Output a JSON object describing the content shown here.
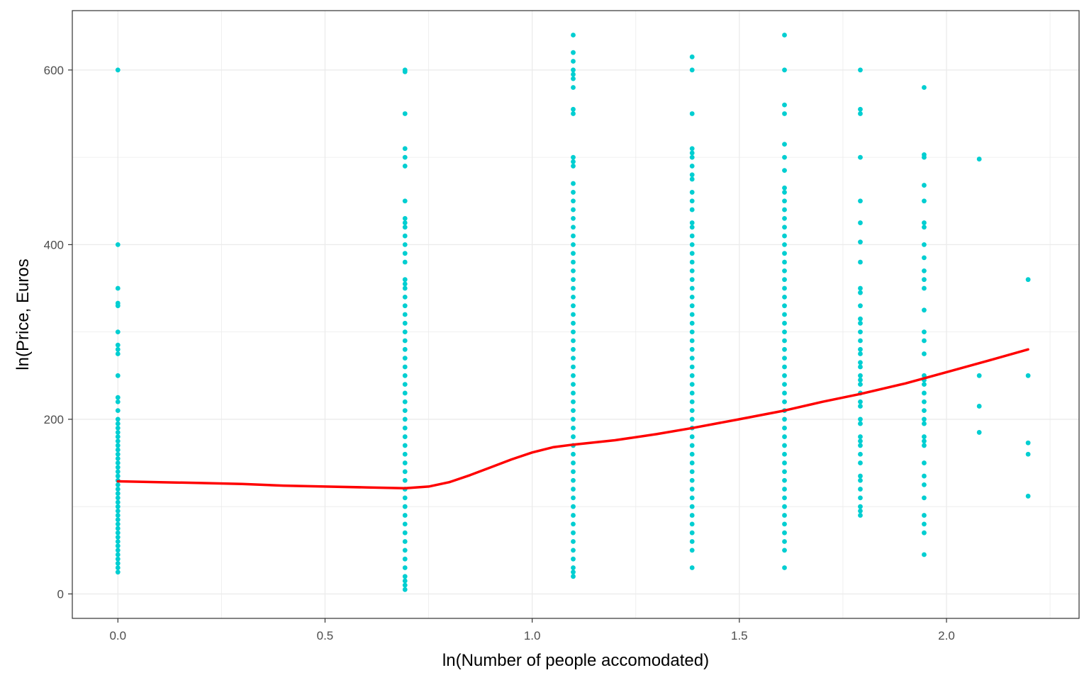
{
  "chart_data": {
    "type": "scatter",
    "xlabel": "ln(Number of people accomodated)",
    "ylabel": "ln(Price, Euros",
    "xlim": [
      -0.11,
      2.32
    ],
    "ylim": [
      -28,
      668
    ],
    "x_ticks": [
      0.0,
      0.5,
      1.0,
      1.5,
      2.0
    ],
    "x_tick_labels": [
      "0.0",
      "0.5",
      "1.0",
      "1.5",
      "2.0"
    ],
    "y_ticks": [
      0,
      200,
      400,
      600
    ],
    "y_tick_labels": [
      "0",
      "200",
      "400",
      "600"
    ],
    "grid": true,
    "legend": "none",
    "colors": {
      "points": "#00CED1",
      "line": "#FF0000",
      "grid": "#EBEBEB",
      "panel_border": "#333333"
    },
    "series": [
      {
        "type": "scatter",
        "groups": [
          {
            "x": 0.0,
            "y": [
              600,
              400,
              350,
              333,
              330,
              300,
              285,
              280,
              275,
              250,
              225,
              220,
              210,
              200,
              195,
              190,
              185,
              180,
              175,
              170,
              165,
              160,
              155,
              150,
              145,
              140,
              135,
              130,
              125,
              120,
              115,
              110,
              105,
              100,
              95,
              90,
              85,
              80,
              75,
              70,
              65,
              60,
              55,
              50,
              45,
              40,
              35,
              30,
              25
            ]
          },
          {
            "x": 0.693,
            "y": [
              600,
              598,
              550,
              510,
              500,
              490,
              450,
              430,
              425,
              420,
              410,
              400,
              390,
              380,
              360,
              355,
              350,
              340,
              330,
              320,
              310,
              300,
              290,
              280,
              270,
              260,
              250,
              240,
              230,
              220,
              210,
              200,
              190,
              180,
              170,
              160,
              150,
              140,
              130,
              120,
              110,
              100,
              90,
              80,
              70,
              60,
              50,
              40,
              30,
              20,
              15,
              10,
              5
            ]
          },
          {
            "x": 1.099,
            "y": [
              640,
              620,
              610,
              600,
              595,
              590,
              580,
              555,
              550,
              500,
              495,
              490,
              470,
              460,
              450,
              440,
              430,
              420,
              410,
              400,
              390,
              380,
              370,
              360,
              350,
              340,
              330,
              320,
              310,
              300,
              290,
              280,
              270,
              260,
              250,
              240,
              230,
              220,
              210,
              200,
              190,
              180,
              170,
              160,
              150,
              140,
              130,
              120,
              110,
              100,
              90,
              80,
              70,
              60,
              50,
              40,
              30,
              25,
              20
            ]
          },
          {
            "x": 1.386,
            "y": [
              615,
              600,
              550,
              510,
              505,
              500,
              490,
              480,
              475,
              460,
              450,
              440,
              425,
              420,
              410,
              400,
              390,
              380,
              370,
              360,
              350,
              340,
              330,
              320,
              310,
              300,
              290,
              280,
              270,
              260,
              250,
              240,
              230,
              220,
              210,
              200,
              190,
              180,
              170,
              160,
              150,
              140,
              130,
              120,
              110,
              100,
              90,
              80,
              70,
              60,
              50,
              30
            ]
          },
          {
            "x": 1.609,
            "y": [
              640,
              600,
              560,
              550,
              515,
              500,
              485,
              465,
              460,
              450,
              440,
              430,
              420,
              410,
              400,
              390,
              380,
              370,
              360,
              350,
              340,
              330,
              320,
              310,
              300,
              290,
              280,
              270,
              260,
              250,
              240,
              230,
              220,
              210,
              200,
              190,
              180,
              170,
              160,
              150,
              140,
              130,
              120,
              110,
              100,
              90,
              80,
              70,
              60,
              50,
              30
            ]
          },
          {
            "x": 1.792,
            "y": [
              600,
              555,
              550,
              500,
              450,
              425,
              403,
              380,
              350,
              345,
              330,
              315,
              310,
              300,
              290,
              280,
              275,
              265,
              260,
              250,
              245,
              240,
              230,
              220,
              215,
              200,
              195,
              180,
              175,
              170,
              160,
              150,
              135,
              130,
              120,
              110,
              100,
              95,
              90
            ]
          },
          {
            "x": 1.946,
            "y": [
              580,
              503,
              500,
              468,
              450,
              425,
              420,
              400,
              385,
              370,
              360,
              350,
              325,
              300,
              290,
              275,
              250,
              245,
              240,
              230,
              220,
              210,
              200,
              195,
              180,
              175,
              170,
              150,
              135,
              125,
              110,
              90,
              80,
              70,
              45
            ]
          },
          {
            "x": 2.079,
            "y": [
              498,
              250,
              215,
              185
            ]
          },
          {
            "x": 2.197,
            "y": [
              360,
              250,
              173,
              160,
              112
            ]
          }
        ]
      },
      {
        "type": "line",
        "x": [
          0.0,
          0.1,
          0.2,
          0.3,
          0.4,
          0.5,
          0.6,
          0.693,
          0.75,
          0.8,
          0.85,
          0.9,
          0.95,
          1.0,
          1.05,
          1.099,
          1.2,
          1.3,
          1.386,
          1.5,
          1.609,
          1.7,
          1.792,
          1.9,
          2.0,
          2.1,
          2.197
        ],
        "y": [
          129,
          128,
          127,
          126,
          124,
          123,
          122,
          121,
          123,
          128,
          136,
          145,
          154,
          162,
          168,
          171,
          176,
          183,
          190,
          200,
          210,
          220,
          229,
          241,
          254,
          267,
          280
        ]
      }
    ]
  }
}
